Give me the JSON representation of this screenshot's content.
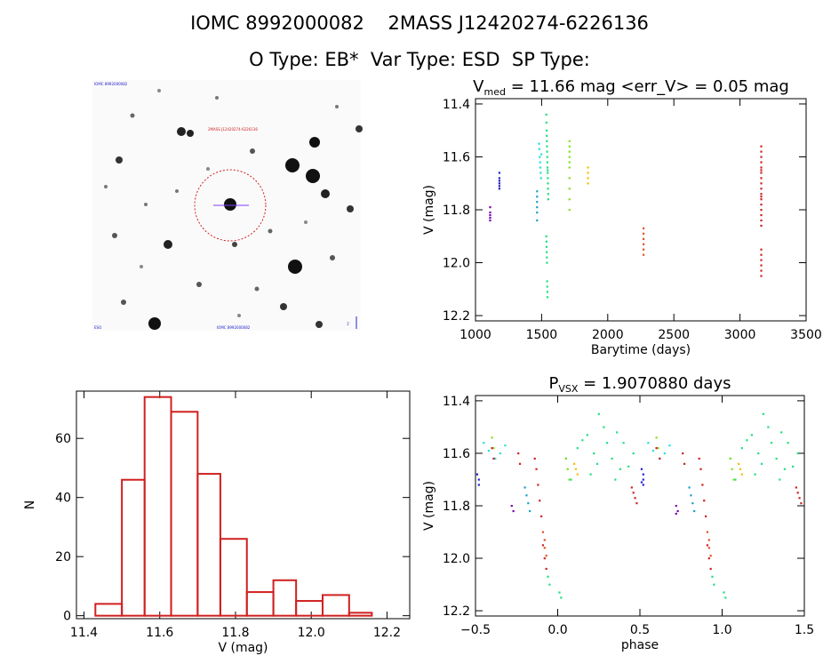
{
  "header": {
    "line1": "IOMC 8992000082    2MASS J12420274-6226136",
    "line2": "O Type: EB*  Var Type: ESD  SP Type:"
  },
  "image_panel": {
    "tl_label": "IOMC 8992000082",
    "center_label": "2MASS J12420274-6226136",
    "bottom_label": "IOMC 8992000082",
    "bl_label": "ESO",
    "br_label": "1'"
  },
  "colors": {
    "purple": "#7a00b0",
    "blue": "#2020d0",
    "teal": "#1aa0c8",
    "cyan": "#20e0e0",
    "green": "#20e080",
    "yellowgreen": "#80e020",
    "yellow": "#f0c000",
    "orange": "#e05020",
    "red": "#d02020",
    "hist": "#d02020"
  },
  "chart_data": [
    {
      "id": "lightcurve",
      "type": "scatter",
      "title_main": "V",
      "title_sub": "med",
      "title_rest": " = 11.66 mag <err_V> = 0.05 mag",
      "xlabel": "Barytime (days)",
      "ylabel": "V (mag)",
      "xlim": [
        1000,
        3500
      ],
      "ylim": [
        12.22,
        11.38
      ],
      "xticks": [
        1000,
        1500,
        2000,
        2500,
        3000,
        3500
      ],
      "yticks": [
        11.4,
        11.6,
        11.8,
        12.0,
        12.2
      ],
      "series": [
        {
          "name": "s1",
          "color": "purple",
          "x": [
            1110,
            1110,
            1110,
            1110,
            1110
          ],
          "y": [
            11.79,
            11.81,
            11.82,
            11.83,
            11.84
          ]
        },
        {
          "name": "s2",
          "color": "blue",
          "x": [
            1180,
            1180,
            1180,
            1180,
            1180,
            1180
          ],
          "y": [
            11.66,
            11.68,
            11.69,
            11.7,
            11.71,
            11.72
          ]
        },
        {
          "name": "s3",
          "color": "teal",
          "x": [
            1465,
            1465,
            1465,
            1465,
            1465,
            1465
          ],
          "y": [
            11.73,
            11.75,
            11.77,
            11.79,
            11.81,
            11.84
          ]
        },
        {
          "name": "s4",
          "color": "cyan",
          "x": [
            1480,
            1482,
            1485,
            1488,
            1490,
            1492,
            1495,
            1498
          ],
          "y": [
            11.55,
            11.57,
            11.6,
            11.62,
            11.64,
            11.66,
            11.68,
            11.59
          ]
        },
        {
          "name": "s5",
          "color": "green",
          "x": [
            1535,
            1536,
            1537,
            1538,
            1539,
            1540,
            1541,
            1542,
            1543,
            1544,
            1545,
            1546,
            1547,
            1548,
            1549,
            1550,
            1535,
            1536,
            1537,
            1538,
            1539,
            1540,
            1541,
            1542,
            1543,
            1544,
            1545
          ],
          "y": [
            11.44,
            11.47,
            11.5,
            11.52,
            11.54,
            11.56,
            11.58,
            11.6,
            11.62,
            11.64,
            11.66,
            11.68,
            11.7,
            11.72,
            11.74,
            11.76,
            11.9,
            11.92,
            11.94,
            11.96,
            11.98,
            12.0,
            12.07,
            12.09,
            12.11,
            12.13,
            11.65
          ]
        },
        {
          "name": "s6",
          "color": "yellowgreen",
          "x": [
            1710,
            1710,
            1710,
            1710,
            1710,
            1710,
            1710,
            1710,
            1710,
            1710
          ],
          "y": [
            11.54,
            11.56,
            11.58,
            11.6,
            11.62,
            11.64,
            11.68,
            11.72,
            11.76,
            11.8
          ]
        },
        {
          "name": "s7",
          "color": "yellow",
          "x": [
            1850,
            1850,
            1850,
            1850
          ],
          "y": [
            11.64,
            11.66,
            11.68,
            11.7
          ]
        },
        {
          "name": "s8",
          "color": "orange",
          "x": [
            2270,
            2270,
            2270,
            2270,
            2270,
            2270
          ],
          "y": [
            11.87,
            11.89,
            11.91,
            11.93,
            11.95,
            11.97
          ]
        },
        {
          "name": "s9",
          "color": "red",
          "x": [
            3160,
            3160,
            3160,
            3160,
            3160,
            3160,
            3160,
            3160,
            3160,
            3160,
            3160,
            3160,
            3160,
            3160,
            3160,
            3160,
            3160,
            3160,
            3160,
            3160,
            3160,
            3160,
            3160,
            3160
          ],
          "y": [
            11.56,
            11.58,
            11.6,
            11.62,
            11.64,
            11.66,
            11.68,
            11.7,
            11.72,
            11.74,
            11.76,
            11.78,
            11.8,
            11.82,
            11.84,
            11.86,
            11.95,
            11.97,
            11.99,
            12.01,
            12.03,
            12.05,
            11.65,
            11.75
          ]
        }
      ]
    },
    {
      "id": "histogram",
      "type": "bar",
      "xlabel": "V (mag)",
      "ylabel": "N",
      "xlim": [
        11.38,
        12.26
      ],
      "ylim": [
        -1,
        76
      ],
      "xticks": [
        11.4,
        11.6,
        11.8,
        12.0,
        12.2
      ],
      "xticklabels": [
        "11.4",
        "11.6",
        "11.8",
        "12.0",
        "12.2"
      ],
      "yticks": [
        0,
        20,
        40,
        60
      ],
      "bin_edges": [
        11.43,
        11.5,
        11.56,
        11.63,
        11.7,
        11.76,
        11.83,
        11.9,
        11.96,
        12.03,
        12.1,
        12.16
      ],
      "values": [
        4,
        46,
        74,
        69,
        48,
        26,
        8,
        12,
        5,
        7,
        1
      ]
    },
    {
      "id": "phased",
      "type": "scatter",
      "title_main": "P",
      "title_sub": "VSX",
      "title_rest": " = 1.9070880 days",
      "xlabel": "phase",
      "ylabel": "V (mag)",
      "xlim": [
        -0.5,
        1.5
      ],
      "ylim": [
        12.22,
        11.38
      ],
      "xticks": [
        -0.5,
        0.0,
        0.5,
        1.0,
        1.5
      ],
      "xticklabels": [
        "−0.5",
        "0.0",
        "0.5",
        "1.0",
        "1.5"
      ],
      "yticks": [
        11.4,
        11.6,
        11.8,
        12.0,
        12.2
      ],
      "series": [
        {
          "name": "p1",
          "color": "purple",
          "x": [
            -0.28,
            -0.27,
            0.72,
            0.73,
            0.72
          ],
          "y": [
            11.8,
            11.82,
            11.8,
            11.82,
            11.83
          ]
        },
        {
          "name": "p2",
          "color": "blue",
          "x": [
            -0.49,
            -0.48,
            -0.48,
            0.51,
            0.52,
            0.52,
            0.52,
            0.51
          ],
          "y": [
            11.68,
            11.7,
            11.72,
            11.66,
            11.68,
            11.7,
            11.72,
            11.71
          ]
        },
        {
          "name": "p3",
          "color": "teal",
          "x": [
            -0.2,
            -0.19,
            -0.18,
            -0.17,
            0.8,
            0.81,
            0.82,
            0.83
          ],
          "y": [
            11.73,
            11.76,
            11.79,
            11.82,
            11.73,
            11.76,
            11.79,
            11.82
          ]
        },
        {
          "name": "p4",
          "color": "cyan",
          "x": [
            -0.45,
            -0.42,
            -0.38,
            -0.35,
            -0.32,
            0.55,
            0.58,
            0.62,
            0.65,
            0.68
          ],
          "y": [
            11.56,
            11.59,
            11.62,
            11.6,
            11.57,
            11.56,
            11.59,
            11.62,
            11.6,
            11.57
          ]
        },
        {
          "name": "p5",
          "color": "green",
          "x": [
            -0.06,
            -0.05,
            0.01,
            0.02,
            0.05,
            0.08,
            0.12,
            0.15,
            0.18,
            0.22,
            0.25,
            0.28,
            0.3,
            0.33,
            0.36,
            0.4,
            0.43,
            0.46,
            0.94,
            0.95,
            1.01,
            1.02,
            1.05,
            1.08,
            1.12,
            1.15,
            1.18,
            1.22,
            1.25,
            1.28,
            1.3,
            1.33,
            1.36,
            1.4,
            1.43,
            1.46,
            0.2,
            0.24,
            0.35,
            0.38,
            1.2,
            1.24,
            1.35,
            1.38
          ],
          "y": [
            12.07,
            12.1,
            12.13,
            12.15,
            11.62,
            11.7,
            11.58,
            11.55,
            11.53,
            11.6,
            11.45,
            11.5,
            11.56,
            11.62,
            11.52,
            11.56,
            11.65,
            11.6,
            12.07,
            12.1,
            12.13,
            12.15,
            11.62,
            11.7,
            11.58,
            11.55,
            11.53,
            11.6,
            11.45,
            11.5,
            11.56,
            11.62,
            11.52,
            11.56,
            11.65,
            11.6,
            11.68,
            11.64,
            11.7,
            11.66,
            11.68,
            11.64,
            11.7,
            11.66
          ]
        },
        {
          "name": "p6",
          "color": "yellowgreen",
          "x": [
            -0.4,
            -0.39,
            0.05,
            0.06,
            0.07,
            0.6,
            0.61,
            1.05,
            1.06,
            1.07
          ],
          "y": [
            11.54,
            11.58,
            11.62,
            11.66,
            11.7,
            11.54,
            11.58,
            11.62,
            11.66,
            11.7
          ]
        },
        {
          "name": "p7",
          "color": "yellow",
          "x": [
            0.1,
            0.11,
            0.12,
            1.1,
            1.11,
            1.12
          ],
          "y": [
            11.64,
            11.66,
            11.68,
            11.64,
            11.66,
            11.68
          ]
        },
        {
          "name": "p8",
          "color": "orange",
          "x": [
            -0.09,
            -0.08,
            -0.08,
            -0.07,
            0.91,
            0.92,
            0.92,
            0.93
          ],
          "y": [
            11.9,
            11.93,
            11.96,
            11.99,
            11.9,
            11.93,
            11.96,
            11.99
          ]
        },
        {
          "name": "p9",
          "color": "red",
          "x": [
            -0.4,
            -0.39,
            -0.24,
            -0.23,
            -0.14,
            -0.13,
            -0.12,
            -0.11,
            -0.1,
            -0.09,
            -0.08,
            -0.07,
            0.45,
            0.46,
            0.47,
            0.48,
            0.6,
            0.62,
            0.76,
            0.77,
            0.86,
            0.87,
            0.88,
            0.89,
            0.9,
            0.91,
            0.92,
            0.93,
            1.45,
            1.46,
            1.47,
            1.48
          ],
          "y": [
            11.58,
            11.62,
            11.6,
            11.64,
            11.62,
            11.66,
            11.72,
            11.78,
            11.84,
            11.95,
            12.0,
            12.04,
            11.73,
            11.75,
            11.77,
            11.79,
            11.58,
            11.62,
            11.6,
            11.64,
            11.62,
            11.66,
            11.72,
            11.78,
            11.84,
            11.95,
            12.0,
            12.04,
            11.73,
            11.75,
            11.77,
            11.79
          ]
        }
      ]
    }
  ]
}
